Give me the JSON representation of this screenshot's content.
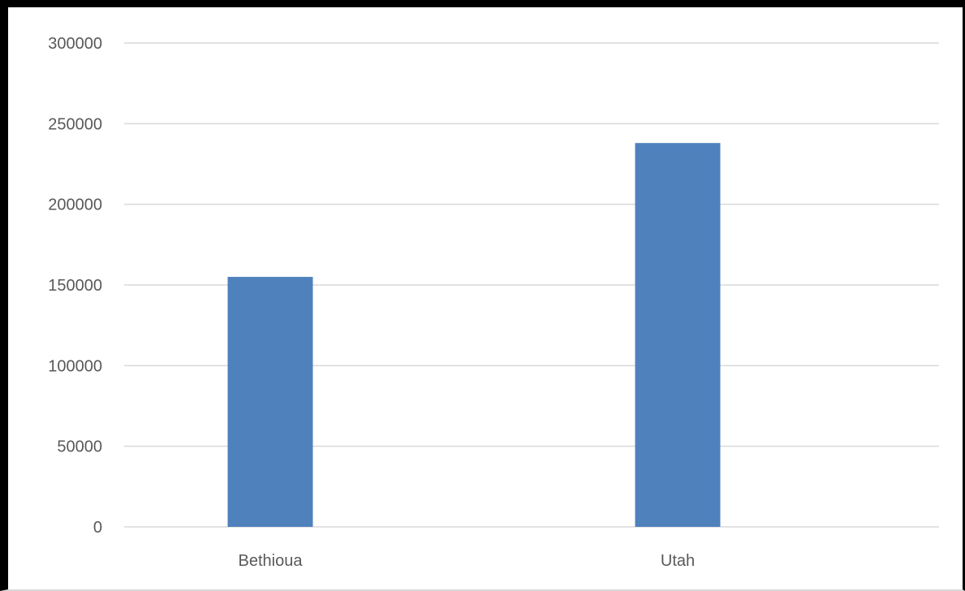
{
  "chart_data": {
    "type": "bar",
    "categories": [
      "Bethioua",
      "Utah"
    ],
    "series": [
      {
        "values": [
          155000,
          238000
        ]
      }
    ],
    "title": "",
    "xlabel": "",
    "ylabel": "",
    "ylim": [
      0,
      300000
    ],
    "yticks": [
      0,
      50000,
      100000,
      150000,
      200000,
      250000,
      300000
    ],
    "grid": true,
    "legend": "none",
    "colors": {
      "bar": "#4f81bd",
      "grid": "#d9d9d9",
      "tick_text": "#595959"
    }
  }
}
